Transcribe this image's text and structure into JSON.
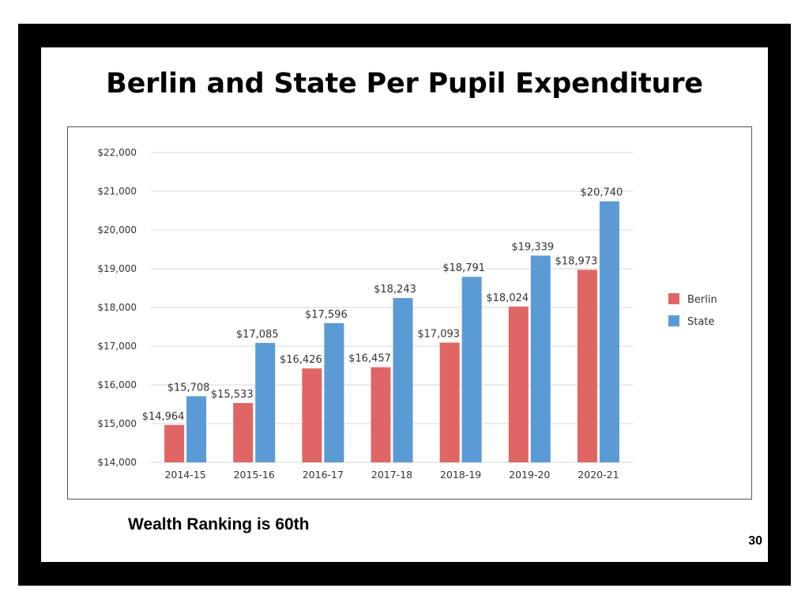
{
  "slide": {
    "title": "Berlin and State Per Pupil Expenditure",
    "caption": "Wealth Ranking is 60th",
    "page_number": "30"
  },
  "colors": {
    "berlin": "#e06666",
    "state": "#5b9bd5",
    "grid": "#d9d9d9",
    "frame": "#000000"
  },
  "chart_data": {
    "type": "bar",
    "categories": [
      "2014-15",
      "2015-16",
      "2016-17",
      "2017-18",
      "2018-19",
      "2019-20",
      "2020-21"
    ],
    "series": [
      {
        "name": "Berlin",
        "values": [
          14964,
          15533,
          16426,
          16457,
          17093,
          18024,
          18973
        ],
        "labels": [
          "$14,964",
          "$15,533",
          "$16,426",
          "$16,457",
          "$17,093",
          "$18,024",
          "$18,973"
        ]
      },
      {
        "name": "State",
        "values": [
          15708,
          17085,
          17596,
          18243,
          18791,
          19339,
          20740
        ],
        "labels": [
          "$15,708",
          "$17,085",
          "$17,596",
          "$18,243",
          "$18,791",
          "$19,339",
          "$20,740"
        ]
      }
    ],
    "ylim": [
      14000,
      22000
    ],
    "yticks": [
      14000,
      15000,
      16000,
      17000,
      18000,
      19000,
      20000,
      21000,
      22000
    ],
    "ytick_labels": [
      "$14,000",
      "$15,000",
      "$16,000",
      "$17,000",
      "$18,000",
      "$19,000",
      "$20,000",
      "$21,000",
      "$22,000"
    ],
    "title": "",
    "xlabel": "",
    "ylabel": "",
    "grid": true,
    "legend": "right"
  }
}
